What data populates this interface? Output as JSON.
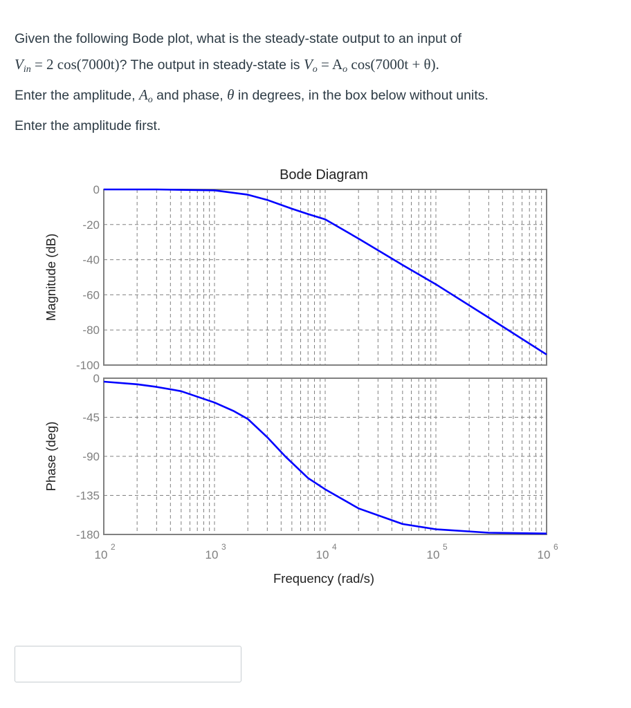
{
  "question": {
    "line1": "Given the following Bode plot, what is the steady-state output to an input of",
    "line2_prefix_var": "V",
    "line2_prefix_sub": "in",
    "line2_input_expr": " = 2 cos(7000t)",
    "line2_text": "? The output in steady-state is ",
    "line2_output_var": "V",
    "line2_output_sub": "o",
    "line2_output_expr": " = A",
    "line2_output_expr_sub": "o",
    "line2_output_tail": " cos(7000t + θ).",
    "line3_a": "Enter the amplitude, ",
    "line3_amp_var": "A",
    "line3_amp_sub": "o",
    "line3_b": " and phase, ",
    "line3_phase_var": "θ",
    "line3_c": " in degrees, in the box below without units.",
    "line4": "Enter the amplitude first."
  },
  "answer": {
    "value": "",
    "placeholder": ""
  },
  "colors": {
    "curve": "#0000ff",
    "axis": "#808080",
    "grid": "#808080",
    "tick_text": "#808080",
    "label_text": "#222222"
  },
  "chart_data": {
    "type": "line",
    "title": "Bode Diagram",
    "xlabel": "Frequency  (rad/s)",
    "xscale": "log",
    "xlim": [
      100,
      1000000
    ],
    "x_ticks": [
      {
        "base": "10",
        "exp": "2",
        "value": 100
      },
      {
        "base": "10",
        "exp": "3",
        "value": 1000
      },
      {
        "base": "10",
        "exp": "4",
        "value": 10000
      },
      {
        "base": "10",
        "exp": "5",
        "value": 100000
      },
      {
        "base": "10",
        "exp": "6",
        "value": 1000000
      }
    ],
    "grid": true,
    "panels": [
      {
        "name": "magnitude",
        "ylabel": "Magnitude (dB)",
        "ylim": [
          -100,
          0
        ],
        "y_ticks": [
          0,
          -20,
          -40,
          -60,
          -80,
          -100
        ],
        "series": [
          {
            "name": "Magnitude",
            "x": [
              100,
              300,
              1000,
              2000,
              3000,
              5000,
              7000,
              10000,
              20000,
              50000,
              100000,
              300000,
              1000000
            ],
            "y": [
              0,
              0,
              -0.5,
              -3,
              -6,
              -11,
              -14,
              -17,
              -28,
              -43,
              -54,
              -73,
              -94
            ]
          }
        ]
      },
      {
        "name": "phase",
        "ylabel": "Phase (deg)",
        "ylim": [
          -180,
          0
        ],
        "y_ticks": [
          0,
          -45,
          -90,
          -135,
          -180
        ],
        "series": [
          {
            "name": "Phase",
            "x": [
              100,
              200,
              300,
              500,
              1000,
              1500,
              2000,
              3000,
              4350,
              7000,
              10000,
              20000,
              50000,
              100000,
              300000,
              1000000
            ],
            "y": [
              -4,
              -7,
              -10,
              -15,
              -28,
              -38,
              -47,
              -68,
              -90,
              -115,
              -128,
              -150,
              -168,
              -174,
              -178,
              -179
            ]
          }
        ]
      }
    ]
  }
}
